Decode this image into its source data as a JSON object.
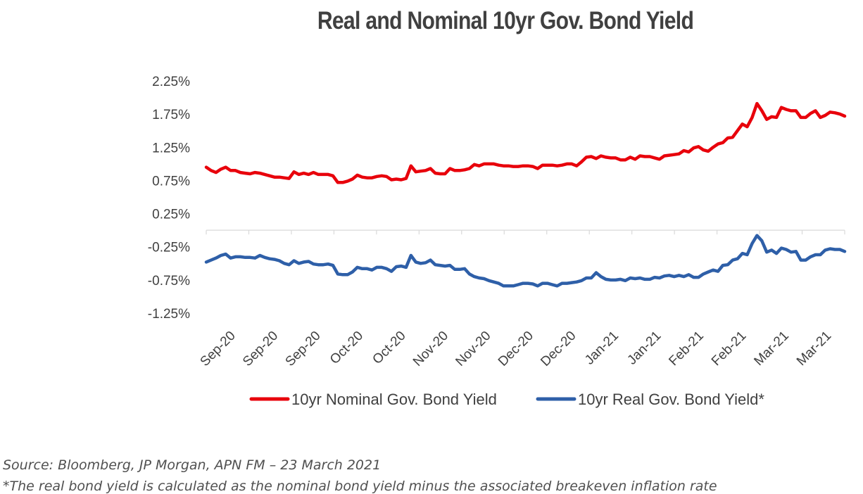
{
  "chart_data": {
    "type": "line",
    "title": "Real and Nominal 10yr Gov. Bond Yield",
    "xlabel": "",
    "ylabel": "",
    "ylim": [
      -1.25,
      2.25
    ],
    "y_ticks": [
      "2.25%",
      "1.75%",
      "1.25%",
      "0.75%",
      "0.25%",
      "-0.25%",
      "-0.75%",
      "-1.25%"
    ],
    "y_tick_values": [
      2.25,
      1.75,
      1.25,
      0.75,
      0.25,
      -0.25,
      -0.75,
      -1.25
    ],
    "x_ticks": [
      "Sep-20",
      "Sep-20",
      "Sep-20",
      "Oct-20",
      "Oct-20",
      "Nov-20",
      "Nov-20",
      "Dec-20",
      "Dec-20",
      "Jan-21",
      "Jan-21",
      "Feb-21",
      "Feb-21",
      "Mar-21",
      "Mar-21"
    ],
    "grid": false,
    "legend_position": "bottom",
    "series": [
      {
        "name": "10yr Nominal Gov. Bond Yield",
        "color": "#e8000b",
        "values": [
          0.95,
          0.9,
          0.87,
          0.92,
          0.95,
          0.9,
          0.9,
          0.87,
          0.86,
          0.85,
          0.87,
          0.86,
          0.84,
          0.82,
          0.8,
          0.8,
          0.79,
          0.78,
          0.88,
          0.84,
          0.86,
          0.84,
          0.87,
          0.84,
          0.84,
          0.84,
          0.82,
          0.72,
          0.72,
          0.74,
          0.77,
          0.83,
          0.8,
          0.79,
          0.79,
          0.81,
          0.82,
          0.81,
          0.76,
          0.77,
          0.76,
          0.78,
          0.97,
          0.88,
          0.89,
          0.9,
          0.93,
          0.86,
          0.85,
          0.85,
          0.93,
          0.9,
          0.9,
          0.91,
          0.93,
          0.99,
          0.97,
          1.0,
          1.0,
          1.0,
          0.98,
          0.97,
          0.97,
          0.96,
          0.96,
          0.97,
          0.97,
          0.96,
          0.93,
          0.98,
          0.98,
          0.98,
          0.97,
          0.98,
          1.0,
          1.0,
          0.97,
          1.03,
          1.1,
          1.11,
          1.08,
          1.12,
          1.1,
          1.09,
          1.09,
          1.06,
          1.06,
          1.1,
          1.07,
          1.12,
          1.11,
          1.11,
          1.09,
          1.07,
          1.12,
          1.13,
          1.14,
          1.15,
          1.2,
          1.18,
          1.24,
          1.26,
          1.21,
          1.19,
          1.25,
          1.3,
          1.32,
          1.39,
          1.4,
          1.5,
          1.6,
          1.56,
          1.7,
          1.91,
          1.8,
          1.67,
          1.71,
          1.7,
          1.85,
          1.82,
          1.8,
          1.8,
          1.7,
          1.7,
          1.76,
          1.8,
          1.7,
          1.73,
          1.78,
          1.77,
          1.75,
          1.72
        ]
      },
      {
        "name": "10yr Real Gov. Bond Yield*",
        "color": "#2e5fa8",
        "values": [
          -0.48,
          -0.45,
          -0.42,
          -0.38,
          -0.36,
          -0.42,
          -0.4,
          -0.4,
          -0.41,
          -0.41,
          -0.42,
          -0.38,
          -0.41,
          -0.43,
          -0.44,
          -0.46,
          -0.5,
          -0.52,
          -0.46,
          -0.5,
          -0.48,
          -0.47,
          -0.51,
          -0.52,
          -0.52,
          -0.51,
          -0.53,
          -0.66,
          -0.67,
          -0.67,
          -0.63,
          -0.56,
          -0.58,
          -0.58,
          -0.6,
          -0.56,
          -0.56,
          -0.58,
          -0.62,
          -0.55,
          -0.54,
          -0.56,
          -0.38,
          -0.48,
          -0.5,
          -0.49,
          -0.45,
          -0.52,
          -0.53,
          -0.54,
          -0.53,
          -0.59,
          -0.59,
          -0.58,
          -0.66,
          -0.7,
          -0.72,
          -0.73,
          -0.76,
          -0.78,
          -0.8,
          -0.84,
          -0.84,
          -0.84,
          -0.82,
          -0.8,
          -0.8,
          -0.81,
          -0.84,
          -0.8,
          -0.8,
          -0.82,
          -0.84,
          -0.8,
          -0.8,
          -0.79,
          -0.78,
          -0.76,
          -0.72,
          -0.72,
          -0.64,
          -0.7,
          -0.74,
          -0.75,
          -0.75,
          -0.74,
          -0.76,
          -0.72,
          -0.73,
          -0.72,
          -0.74,
          -0.74,
          -0.71,
          -0.72,
          -0.69,
          -0.68,
          -0.7,
          -0.68,
          -0.7,
          -0.67,
          -0.71,
          -0.71,
          -0.66,
          -0.63,
          -0.6,
          -0.62,
          -0.53,
          -0.52,
          -0.45,
          -0.43,
          -0.35,
          -0.37,
          -0.2,
          -0.08,
          -0.16,
          -0.33,
          -0.3,
          -0.35,
          -0.27,
          -0.29,
          -0.33,
          -0.32,
          -0.45,
          -0.45,
          -0.4,
          -0.37,
          -0.37,
          -0.3,
          -0.28,
          -0.29,
          -0.29,
          -0.32
        ]
      }
    ]
  },
  "source": "Source: Bloomberg, JP Morgan, APN FM – 23 March 2021",
  "footnote": "*The real bond yield is calculated as the nominal bond yield minus the associated breakeven inflation rate"
}
